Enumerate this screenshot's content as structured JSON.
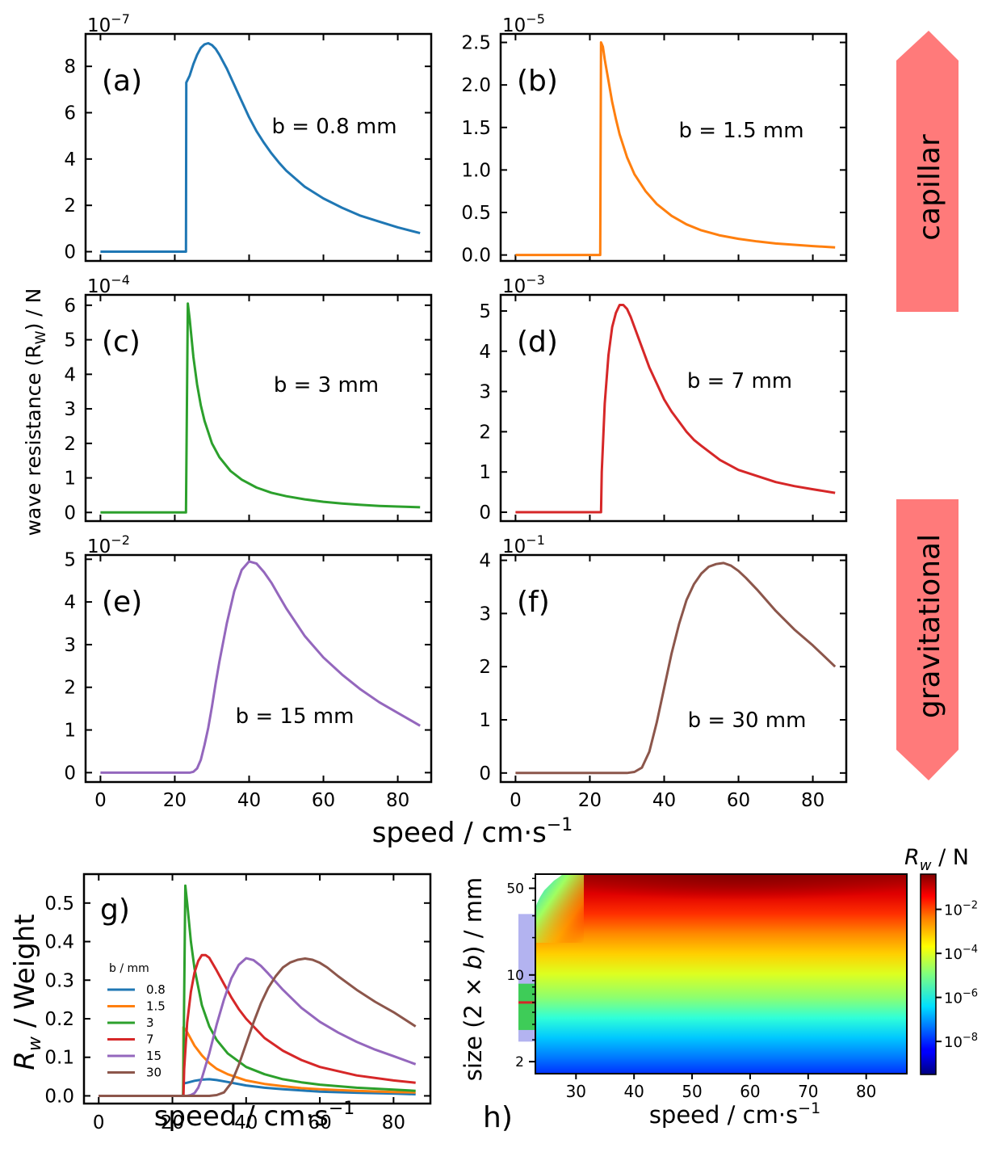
{
  "figure": {
    "shared_ylabel": "wave resistance (R",
    "shared_ylabel_sub": "W",
    "shared_ylabel_tail": ")  /  N",
    "shared_xlabel": "speed  /  cm·s",
    "shared_xlabel_sup": "−1",
    "regime_top": "capillar",
    "regime_bottom": "gravitational",
    "regime_color": "#ff7a7a"
  },
  "chart_data": [
    {
      "id": "a",
      "type": "line",
      "panel_label": "(a)",
      "annotation": "b = 0.8 mm",
      "color": "#1f77b4",
      "exponent_base": "10",
      "exponent": "−7",
      "xlim": [
        -4,
        89
      ],
      "ylim": [
        -0.4,
        9.4
      ],
      "xticks": [
        0,
        20,
        40,
        60,
        80
      ],
      "yticks": [
        0,
        2,
        4,
        6,
        8
      ],
      "ytick_labels": [
        "0",
        "2",
        "4",
        "6",
        "8"
      ],
      "x": [
        0,
        22,
        23,
        23.1,
        24,
        25,
        26,
        27,
        28,
        29,
        30,
        31,
        32,
        34,
        36,
        38,
        40,
        42,
        44,
        46,
        48,
        50,
        55,
        60,
        65,
        70,
        75,
        80,
        86
      ],
      "y": [
        0,
        0,
        0,
        7.3,
        7.6,
        8.1,
        8.5,
        8.8,
        8.95,
        9.0,
        8.92,
        8.75,
        8.5,
        7.9,
        7.2,
        6.5,
        5.8,
        5.2,
        4.7,
        4.25,
        3.85,
        3.5,
        2.8,
        2.3,
        1.9,
        1.55,
        1.3,
        1.05,
        0.8
      ]
    },
    {
      "id": "b",
      "type": "line",
      "panel_label": "(b)",
      "annotation": "b = 1.5 mm",
      "color": "#ff7f0e",
      "exponent_base": "10",
      "exponent": "−5",
      "xlim": [
        -4,
        89
      ],
      "ylim": [
        -0.07,
        2.6
      ],
      "xticks": [
        0,
        20,
        40,
        60,
        80
      ],
      "yticks": [
        0,
        0.5,
        1.0,
        1.5,
        2.0,
        2.5
      ],
      "ytick_labels": [
        "0.0",
        "0.5",
        "1.0",
        "1.5",
        "2.0",
        "2.5"
      ],
      "x": [
        0,
        22,
        22.8,
        23,
        23.5,
        24,
        25,
        26,
        27,
        28,
        30,
        32,
        35,
        38,
        42,
        46,
        50,
        55,
        60,
        65,
        70,
        75,
        80,
        86
      ],
      "y": [
        0,
        0,
        0,
        2.5,
        2.45,
        2.3,
        2.05,
        1.8,
        1.6,
        1.42,
        1.15,
        0.95,
        0.75,
        0.6,
        0.46,
        0.36,
        0.29,
        0.23,
        0.19,
        0.16,
        0.135,
        0.12,
        0.105,
        0.09
      ]
    },
    {
      "id": "c",
      "type": "line",
      "panel_label": "(c)",
      "annotation": "b = 3 mm",
      "color": "#2ca02c",
      "exponent_base": "10",
      "exponent": "−4",
      "xlim": [
        -4,
        89
      ],
      "ylim": [
        -0.25,
        6.3
      ],
      "xticks": [
        0,
        20,
        40,
        60,
        80
      ],
      "yticks": [
        0,
        1,
        2,
        3,
        4,
        5,
        6
      ],
      "ytick_labels": [
        "0",
        "1",
        "2",
        "3",
        "4",
        "5",
        "6"
      ],
      "x": [
        0,
        22,
        23,
        23.5,
        24,
        25,
        26,
        27,
        28,
        30,
        32,
        35,
        38,
        42,
        46,
        50,
        55,
        60,
        65,
        70,
        75,
        80,
        86
      ],
      "y": [
        0,
        0,
        0,
        6.05,
        5.6,
        4.5,
        3.7,
        3.1,
        2.65,
        2.0,
        1.6,
        1.2,
        0.95,
        0.72,
        0.57,
        0.47,
        0.38,
        0.31,
        0.26,
        0.22,
        0.19,
        0.17,
        0.15
      ]
    },
    {
      "id": "d",
      "type": "line",
      "panel_label": "(d)",
      "annotation": "b = 7 mm",
      "color": "#d62728",
      "exponent_base": "10",
      "exponent": "−3",
      "xlim": [
        -4,
        89
      ],
      "ylim": [
        -0.22,
        5.4
      ],
      "xticks": [
        0,
        20,
        40,
        60,
        80
      ],
      "yticks": [
        0,
        1,
        2,
        3,
        4,
        5
      ],
      "ytick_labels": [
        "0",
        "1",
        "2",
        "3",
        "4",
        "5"
      ],
      "x": [
        0,
        22,
        23,
        23.2,
        24,
        25,
        26,
        27,
        28,
        29,
        30,
        31,
        32,
        34,
        36,
        38,
        40,
        42,
        44,
        46,
        48,
        50,
        55,
        60,
        65,
        70,
        75,
        80,
        86
      ],
      "y": [
        0,
        0,
        0,
        1.0,
        2.7,
        3.9,
        4.6,
        4.95,
        5.15,
        5.15,
        5.05,
        4.85,
        4.6,
        4.1,
        3.6,
        3.2,
        2.8,
        2.5,
        2.25,
        2.0,
        1.8,
        1.65,
        1.3,
        1.05,
        0.9,
        0.75,
        0.65,
        0.57,
        0.48
      ]
    },
    {
      "id": "e",
      "type": "line",
      "panel_label": "(e)",
      "annotation": "b = 15 mm",
      "color": "#9467bd",
      "exponent_base": "10",
      "exponent": "−2",
      "xlim": [
        -4,
        89
      ],
      "ylim": [
        -0.22,
        5.1
      ],
      "xticks": [
        0,
        20,
        40,
        60,
        80
      ],
      "yticks": [
        0,
        1,
        2,
        3,
        4,
        5
      ],
      "ytick_labels": [
        "0",
        "1",
        "2",
        "3",
        "4",
        "5"
      ],
      "x": [
        0,
        22,
        24,
        25,
        26,
        27,
        28,
        29,
        30,
        31,
        32,
        34,
        36,
        38,
        40,
        42,
        44,
        46,
        48,
        50,
        55,
        60,
        65,
        70,
        75,
        80,
        86
      ],
      "y": [
        0,
        0,
        0,
        0.02,
        0.1,
        0.3,
        0.65,
        1.05,
        1.55,
        2.1,
        2.6,
        3.5,
        4.25,
        4.75,
        4.95,
        4.9,
        4.7,
        4.45,
        4.15,
        3.85,
        3.2,
        2.7,
        2.3,
        1.95,
        1.65,
        1.4,
        1.1
      ]
    },
    {
      "id": "f",
      "type": "line",
      "panel_label": "(f)",
      "annotation": "b = 30 mm",
      "color": "#8c564b",
      "exponent_base": "10",
      "exponent": "−1",
      "xlim": [
        -4,
        89
      ],
      "ylim": [
        -0.17,
        4.1
      ],
      "xticks": [
        0,
        20,
        40,
        60,
        80
      ],
      "yticks": [
        0,
        1,
        2,
        3,
        4
      ],
      "ytick_labels": [
        "0",
        "1",
        "2",
        "3",
        "4"
      ],
      "x": [
        0,
        25,
        30,
        32,
        34,
        36,
        38,
        40,
        42,
        44,
        46,
        48,
        50,
        52,
        54,
        56,
        58,
        60,
        62,
        65,
        70,
        75,
        80,
        86
      ],
      "y": [
        0,
        0,
        0,
        0.02,
        0.1,
        0.4,
        0.95,
        1.6,
        2.25,
        2.8,
        3.25,
        3.55,
        3.75,
        3.88,
        3.93,
        3.95,
        3.9,
        3.8,
        3.67,
        3.45,
        3.05,
        2.7,
        2.4,
        2.0
      ]
    },
    {
      "id": "g",
      "type": "line",
      "panel_label": "g)",
      "title": "",
      "xlabel": "speed  /  cm·s",
      "xlabel_sup": "−1",
      "ylabel_main": "R",
      "ylabel_sub": "w",
      "ylabel_tail": "  /  Weight",
      "xlim": [
        -4,
        90
      ],
      "ylim": [
        -0.02,
        0.575
      ],
      "xticks": [
        0,
        20,
        40,
        60,
        80
      ],
      "yticks": [
        0.0,
        0.1,
        0.2,
        0.3,
        0.4,
        0.5
      ],
      "ytick_labels": [
        "0.0",
        "0.1",
        "0.2",
        "0.3",
        "0.4",
        "0.5"
      ],
      "legend_title": "b  /  mm",
      "legend_placement": "center-left",
      "series": [
        {
          "name": "0.8",
          "color": "#1f77b4",
          "x": [
            0,
            22.9,
            23,
            24,
            26,
            28,
            30,
            32,
            35,
            40,
            45,
            50,
            55,
            60,
            70,
            80,
            86
          ],
          "y": [
            0,
            0,
            0.032,
            0.034,
            0.039,
            0.042,
            0.043,
            0.041,
            0.036,
            0.027,
            0.021,
            0.017,
            0.014,
            0.011,
            0.008,
            0.006,
            0.004
          ]
        },
        {
          "name": "1.5",
          "color": "#ff7f0e",
          "x": [
            0,
            22.9,
            23,
            24,
            26,
            28,
            30,
            32,
            35,
            40,
            45,
            50,
            55,
            60,
            70,
            80,
            86
          ],
          "y": [
            0,
            0,
            0.178,
            0.165,
            0.13,
            0.105,
            0.085,
            0.07,
            0.056,
            0.04,
            0.031,
            0.025,
            0.02,
            0.017,
            0.013,
            0.01,
            0.009
          ]
        },
        {
          "name": "3",
          "color": "#2ca02c",
          "x": [
            0,
            22.9,
            23.5,
            24,
            25,
            26,
            28,
            30,
            32,
            35,
            40,
            45,
            50,
            55,
            60,
            70,
            80,
            86
          ],
          "y": [
            0,
            0,
            0.545,
            0.5,
            0.4,
            0.33,
            0.235,
            0.18,
            0.145,
            0.11,
            0.075,
            0.056,
            0.043,
            0.035,
            0.029,
            0.021,
            0.016,
            0.013
          ]
        },
        {
          "name": "7",
          "color": "#d62728",
          "x": [
            0,
            23,
            23.2,
            24,
            25,
            26,
            27,
            28,
            29,
            30,
            32,
            34,
            36,
            38,
            40,
            45,
            50,
            55,
            60,
            70,
            80,
            86
          ],
          "y": [
            0,
            0,
            0.07,
            0.19,
            0.27,
            0.32,
            0.35,
            0.365,
            0.365,
            0.358,
            0.325,
            0.29,
            0.255,
            0.225,
            0.2,
            0.15,
            0.117,
            0.093,
            0.075,
            0.053,
            0.04,
            0.034
          ]
        },
        {
          "name": "15",
          "color": "#9467bd",
          "x": [
            0,
            24,
            25,
            26,
            27,
            28,
            30,
            32,
            34,
            36,
            38,
            40,
            42,
            44,
            46,
            50,
            55,
            60,
            65,
            70,
            75,
            80,
            86
          ],
          "y": [
            0,
            0,
            0.002,
            0.007,
            0.021,
            0.046,
            0.11,
            0.185,
            0.25,
            0.305,
            0.34,
            0.357,
            0.352,
            0.337,
            0.317,
            0.275,
            0.228,
            0.192,
            0.164,
            0.14,
            0.12,
            0.103,
            0.082
          ]
        },
        {
          "name": "30",
          "color": "#8c564b",
          "x": [
            0,
            30,
            32,
            34,
            36,
            38,
            40,
            42,
            44,
            46,
            48,
            50,
            52,
            54,
            56,
            58,
            60,
            62,
            65,
            70,
            75,
            80,
            86
          ],
          "y": [
            0,
            0,
            0.002,
            0.009,
            0.034,
            0.08,
            0.135,
            0.19,
            0.24,
            0.28,
            0.31,
            0.333,
            0.346,
            0.353,
            0.356,
            0.353,
            0.345,
            0.333,
            0.31,
            0.275,
            0.244,
            0.217,
            0.18
          ]
        }
      ]
    },
    {
      "id": "h",
      "type": "heatmap",
      "panel_label": "h)",
      "xlabel": "speed  /  cm·s",
      "xlabel_sup": "−1",
      "ylabel_a": "size (2 × ",
      "ylabel_b": "b",
      "ylabel_c": ")  /  mm",
      "xlim": [
        23,
        87
      ],
      "y_scale": "log",
      "ylim": [
        1.6,
        65
      ],
      "xticks": [
        30,
        40,
        50,
        60,
        70,
        80
      ],
      "yticks": [
        2,
        10,
        50
      ],
      "ytick_labels": [
        "2",
        "10",
        "50"
      ],
      "colorbar_label": "R",
      "colorbar_label_sub": "w",
      "colorbar_label_tail": " / N",
      "colorbar_log_range": [
        -9.5,
        -0.4
      ],
      "colorbar_ticks": [
        {
          "base": "10",
          "exp": "−2",
          "log": -2
        },
        {
          "base": "10",
          "exp": "−4",
          "log": -4
        },
        {
          "base": "10",
          "exp": "−6",
          "log": -6
        },
        {
          "base": "10",
          "exp": "−8",
          "log": -8
        }
      ],
      "blocked_region_color": "#ffffff",
      "band_capillary": {
        "from": 2.9,
        "to": 31,
        "color": "#b3b3f0"
      },
      "band_green": {
        "from": 3.6,
        "to": 8.5,
        "color": "#3ecc58"
      },
      "marker_red": {
        "at": 6.0,
        "color": "#d62728"
      }
    }
  ]
}
